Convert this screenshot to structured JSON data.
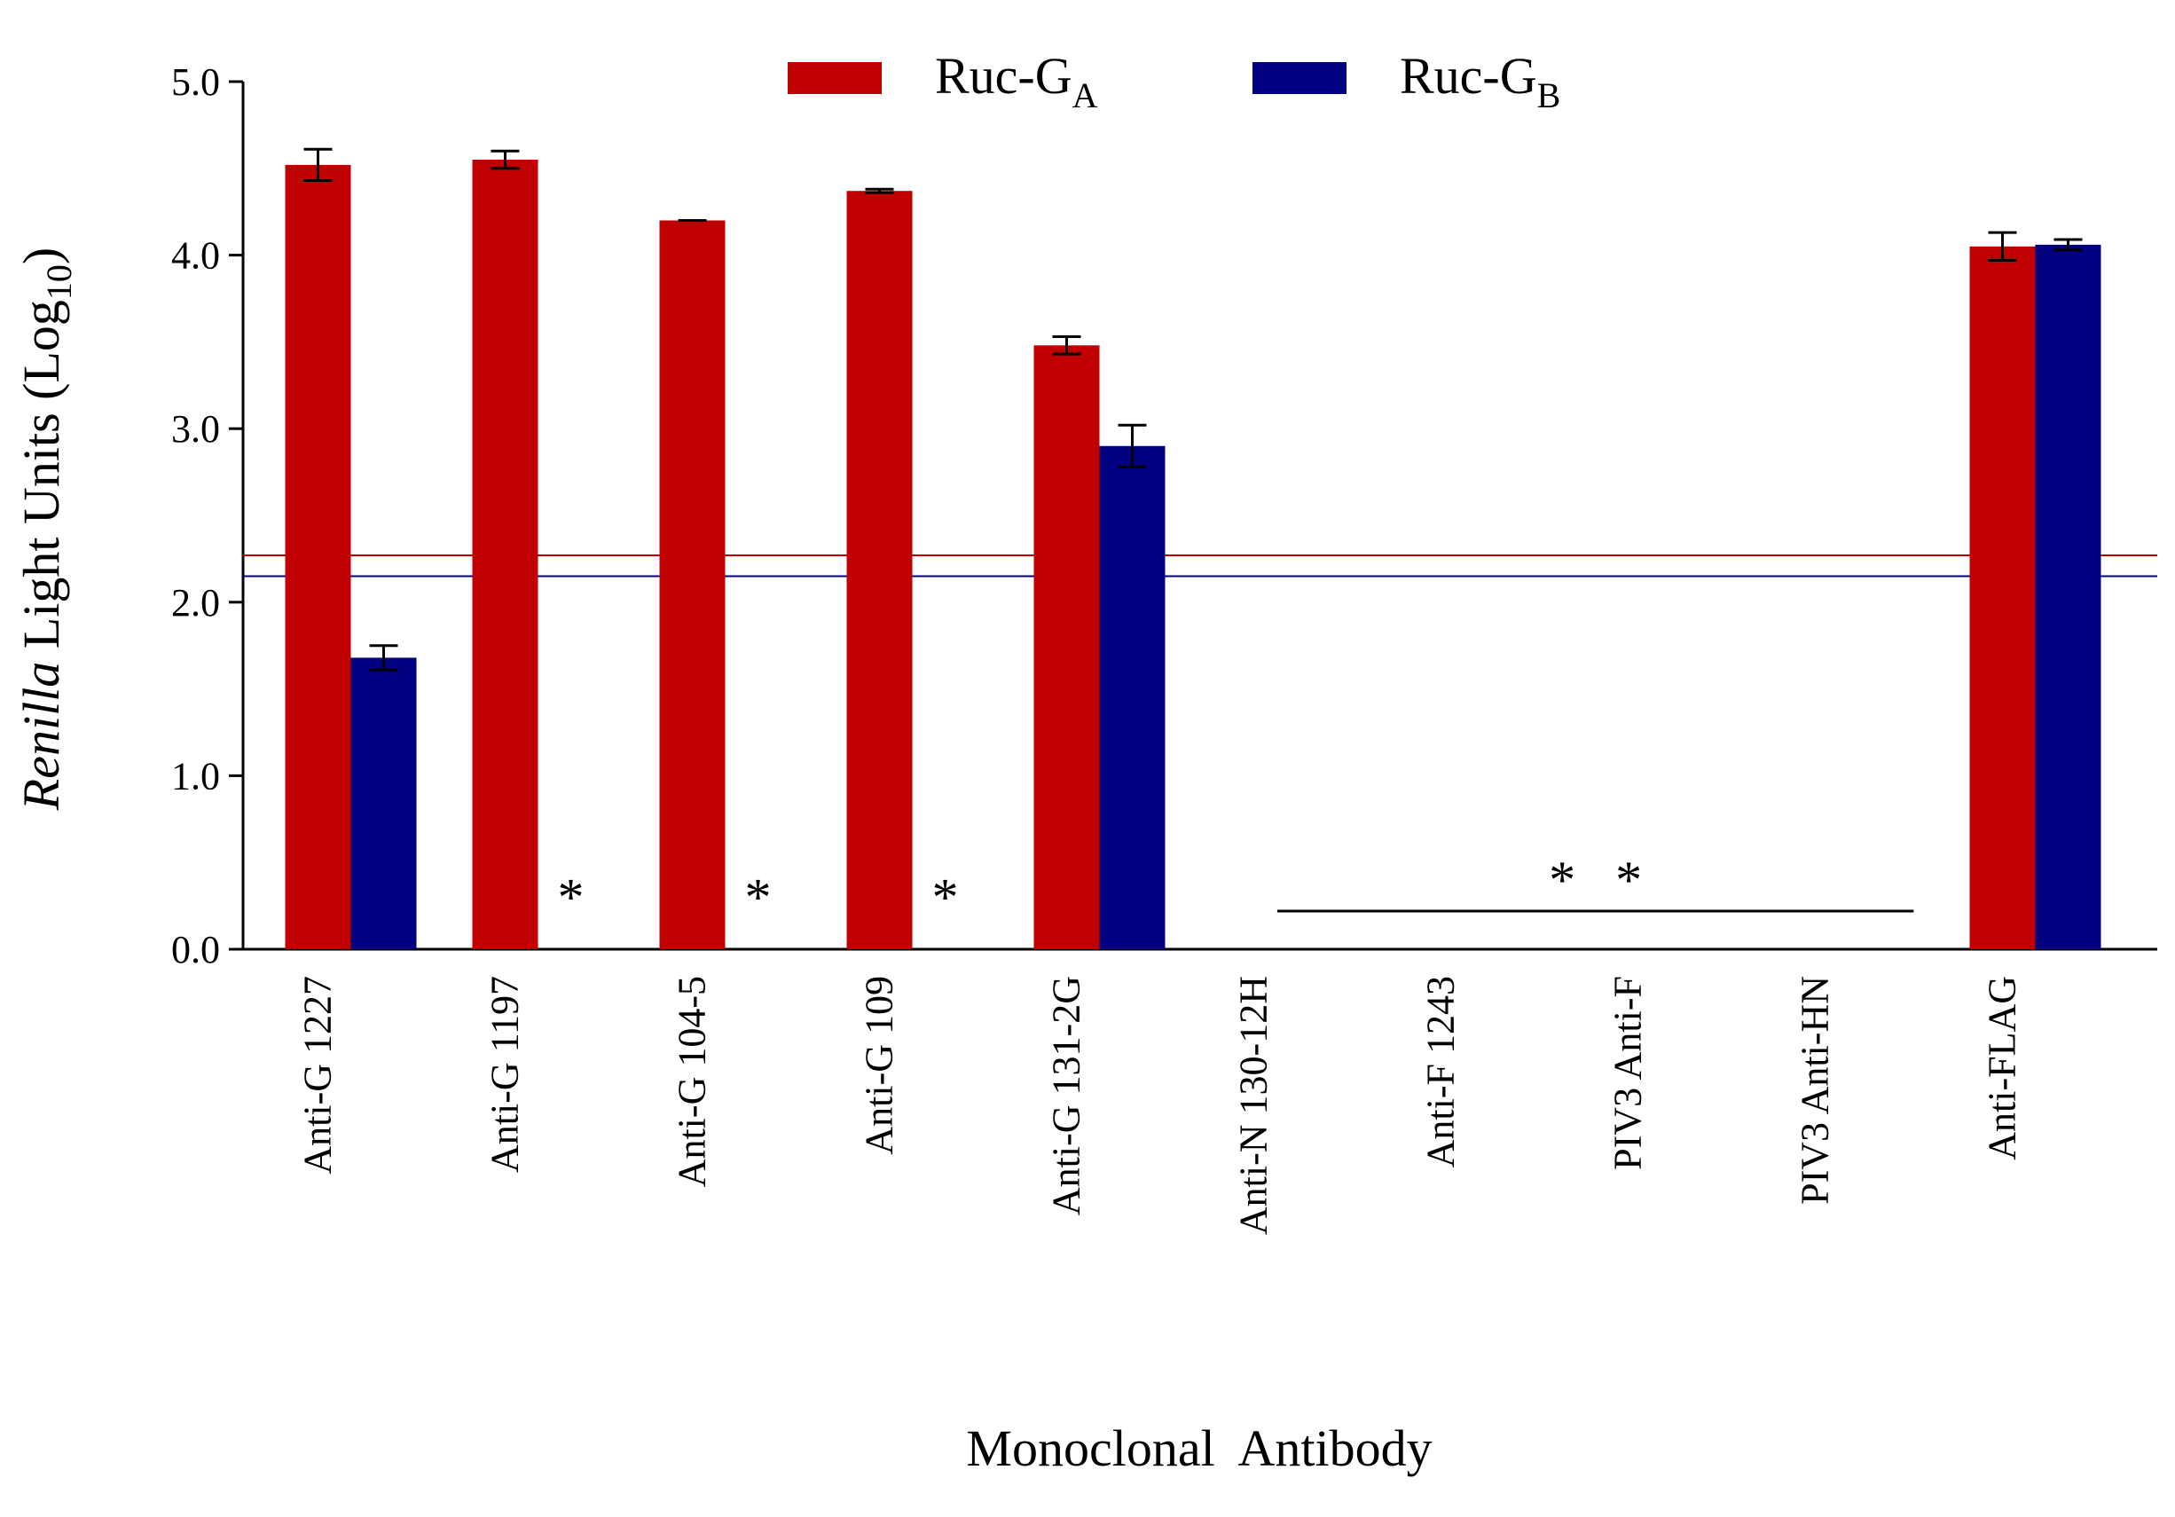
{
  "chart_data": {
    "type": "bar",
    "title": "",
    "xlabel": "Monoclonal  Antibody",
    "ylabel": {
      "italic": "Renilla",
      "main": " Light Units (Log",
      "subscript": "10",
      "close": ")"
    },
    "ylim": [
      0,
      5
    ],
    "yticks": [
      "0.0",
      "1.0",
      "2.0",
      "3.0",
      "4.0",
      "5.0"
    ],
    "categories": [
      "Anti-G 1227",
      "Anti-G 1197",
      "Anti-G 104-5",
      "Anti-G 109",
      "Anti-G 131-2G",
      "Anti-N 130-12H",
      "Anti-F 1243",
      "PIV3 Anti-F",
      "PIV3 Anti-HN",
      "Anti-FLAG"
    ],
    "series": [
      {
        "name": "Ruc-G",
        "subscript": "A",
        "color": "#c00000",
        "values": [
          4.52,
          4.55,
          4.2,
          4.37,
          3.48,
          null,
          null,
          null,
          null,
          4.05
        ],
        "errors": [
          0.09,
          0.05,
          0.0,
          0.01,
          0.05,
          null,
          null,
          null,
          null,
          0.08
        ]
      },
      {
        "name": "Ruc-G",
        "subscript": "B",
        "color": "#000080",
        "values": [
          1.68,
          null,
          null,
          null,
          2.9,
          null,
          null,
          null,
          null,
          4.06
        ],
        "errors": [
          0.07,
          null,
          null,
          null,
          0.12,
          null,
          null,
          null,
          null,
          0.03
        ]
      }
    ],
    "thresholds": [
      {
        "series": "A",
        "value": 2.27,
        "color": "#c00000"
      },
      {
        "series": "B",
        "value": 2.15,
        "color": "#000080"
      }
    ],
    "annotations": [
      {
        "text": "*",
        "after_category": "Anti-G 1197",
        "y": 0.3
      },
      {
        "text": "*",
        "after_category": "Anti-G 104-5",
        "y": 0.3
      },
      {
        "text": "*",
        "after_category": "Anti-G 109",
        "y": 0.3
      },
      {
        "text": "*   *",
        "span_from": "Anti-N 130-12H",
        "span_to": "PIV3 Anti-HN",
        "y": 0.4,
        "line_y": 0.22
      }
    ],
    "legend_position": "top-center",
    "grid": false
  }
}
